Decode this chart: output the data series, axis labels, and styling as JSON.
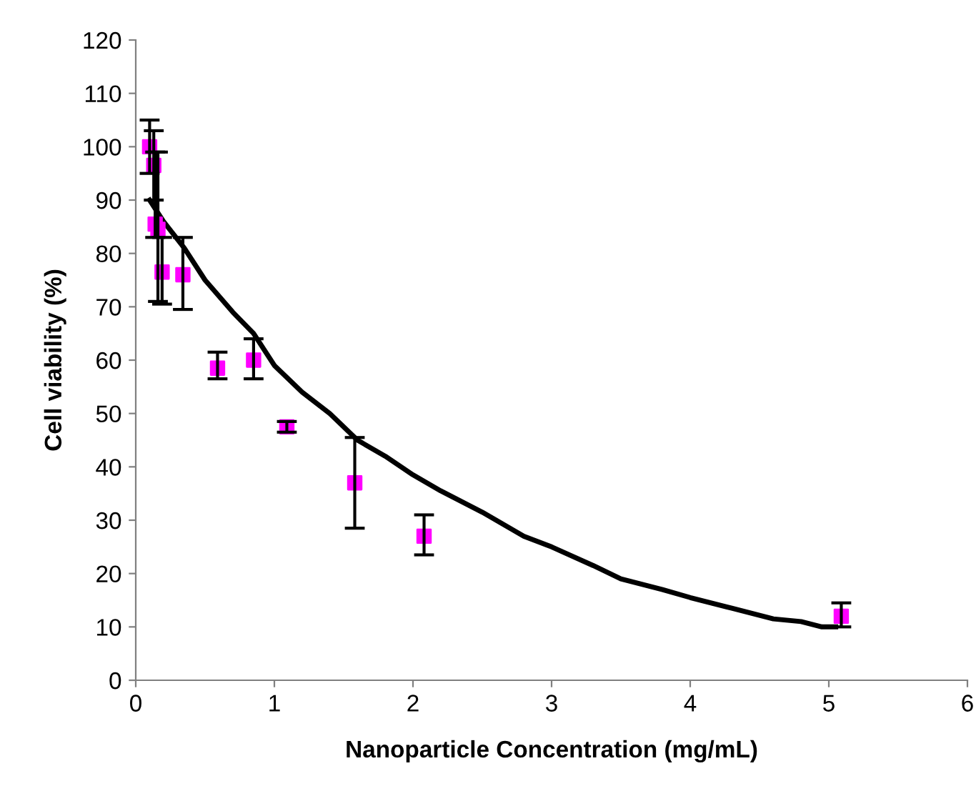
{
  "chart_data": {
    "type": "scatter",
    "xlabel": "Nanoparticle Concentration (mg/mL)",
    "ylabel": "Cell viability (%)",
    "xlim": [
      0,
      6
    ],
    "xticks": [
      0,
      1,
      2,
      3,
      4,
      5,
      6
    ],
    "ylim": [
      0,
      120
    ],
    "yticks": [
      0,
      10,
      20,
      30,
      40,
      50,
      60,
      70,
      80,
      90,
      100,
      110,
      120
    ],
    "grid": false,
    "legend": false,
    "series": [
      {
        "color": "#ff00ff",
        "marker": "square",
        "x": [
          0.1,
          0.13,
          0.14,
          0.16,
          0.19,
          0.34,
          0.59,
          0.85,
          1.09,
          1.58,
          2.08,
          5.09
        ],
        "values": [
          100,
          96.5,
          85.5,
          84.5,
          76.5,
          76,
          58.5,
          60,
          47.5,
          37,
          27,
          12
        ],
        "errors": [
          [
            95,
            105
          ],
          [
            90,
            103
          ],
          [
            83,
            99
          ],
          [
            71,
            99
          ],
          [
            70.5,
            83
          ],
          [
            69.5,
            83
          ],
          [
            56.5,
            61.5
          ],
          [
            56.5,
            64
          ],
          [
            46.5,
            48.5
          ],
          [
            28.5,
            45.5
          ],
          [
            23.5,
            31
          ],
          [
            10,
            14.5
          ]
        ]
      },
      {
        "type": "line",
        "color": "#000000",
        "marker": "none",
        "line_style": "solid",
        "x": [
          0.1,
          0.2,
          0.35,
          0.5,
          0.7,
          0.85,
          1.0,
          1.2,
          1.4,
          1.6,
          1.8,
          2.0,
          2.2,
          2.5,
          2.8,
          3.0,
          3.3,
          3.5,
          3.8,
          4.0,
          4.3,
          4.6,
          4.8,
          4.95,
          5.05
        ],
        "values": [
          90,
          86,
          81,
          75,
          69,
          65,
          59,
          54,
          50,
          45,
          42,
          38.5,
          35.5,
          31.5,
          27,
          25,
          21.5,
          19,
          17,
          15.5,
          13.5,
          11.5,
          11,
          10,
          10
        ]
      }
    ]
  }
}
